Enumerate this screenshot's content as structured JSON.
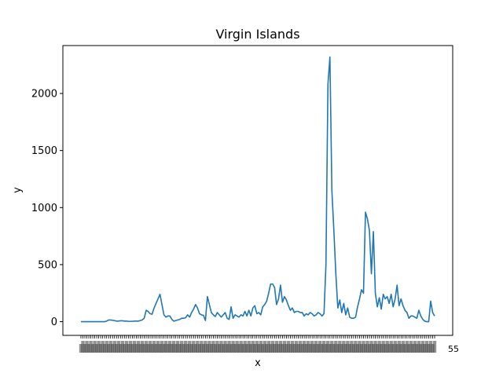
{
  "chart_data": {
    "type": "line",
    "title": "Virgin Islands",
    "xlabel": "x",
    "ylabel": "y",
    "ylim": [
      -120,
      2420
    ],
    "yticks": [
      0,
      500,
      1000,
      1500,
      2000
    ],
    "line_color": "#1f77b4",
    "x_tick_labels_legible": false,
    "x_tick_label_visible_end": "55",
    "series": [
      {
        "name": "y",
        "values": [
          0,
          0,
          0,
          0,
          0,
          0,
          0,
          0,
          0,
          0,
          0,
          0,
          0,
          5,
          15,
          15,
          12,
          10,
          5,
          5,
          8,
          8,
          5,
          5,
          3,
          3,
          3,
          5,
          5,
          5,
          10,
          15,
          30,
          100,
          90,
          70,
          65,
          120,
          160,
          200,
          240,
          150,
          60,
          40,
          50,
          50,
          20,
          5,
          10,
          15,
          20,
          30,
          30,
          35,
          60,
          40,
          80,
          110,
          150,
          120,
          70,
          60,
          55,
          10,
          220,
          150,
          80,
          60,
          45,
          80,
          60,
          40,
          60,
          80,
          30,
          20,
          130,
          30,
          60,
          50,
          40,
          60,
          50,
          90,
          50,
          100,
          50,
          120,
          140,
          70,
          80,
          60,
          130,
          150,
          180,
          250,
          330,
          330,
          300,
          150,
          200,
          320,
          170,
          220,
          190,
          140,
          100,
          120,
          80,
          90,
          90,
          80,
          80,
          50,
          70,
          60,
          80,
          70,
          50,
          60,
          80,
          70,
          50,
          70,
          500,
          2080,
          2320,
          1150,
          800,
          420,
          120,
          190,
          80,
          160,
          60,
          120,
          40,
          30,
          30,
          40,
          130,
          200,
          280,
          250,
          960,
          900,
          800,
          420,
          790,
          250,
          130,
          210,
          110,
          240,
          200,
          220,
          160,
          240,
          130,
          200,
          320,
          140,
          200,
          140,
          100,
          80,
          30,
          50,
          50,
          40,
          30,
          100,
          50,
          20,
          5,
          0,
          0,
          180,
          80,
          50
        ]
      }
    ]
  }
}
